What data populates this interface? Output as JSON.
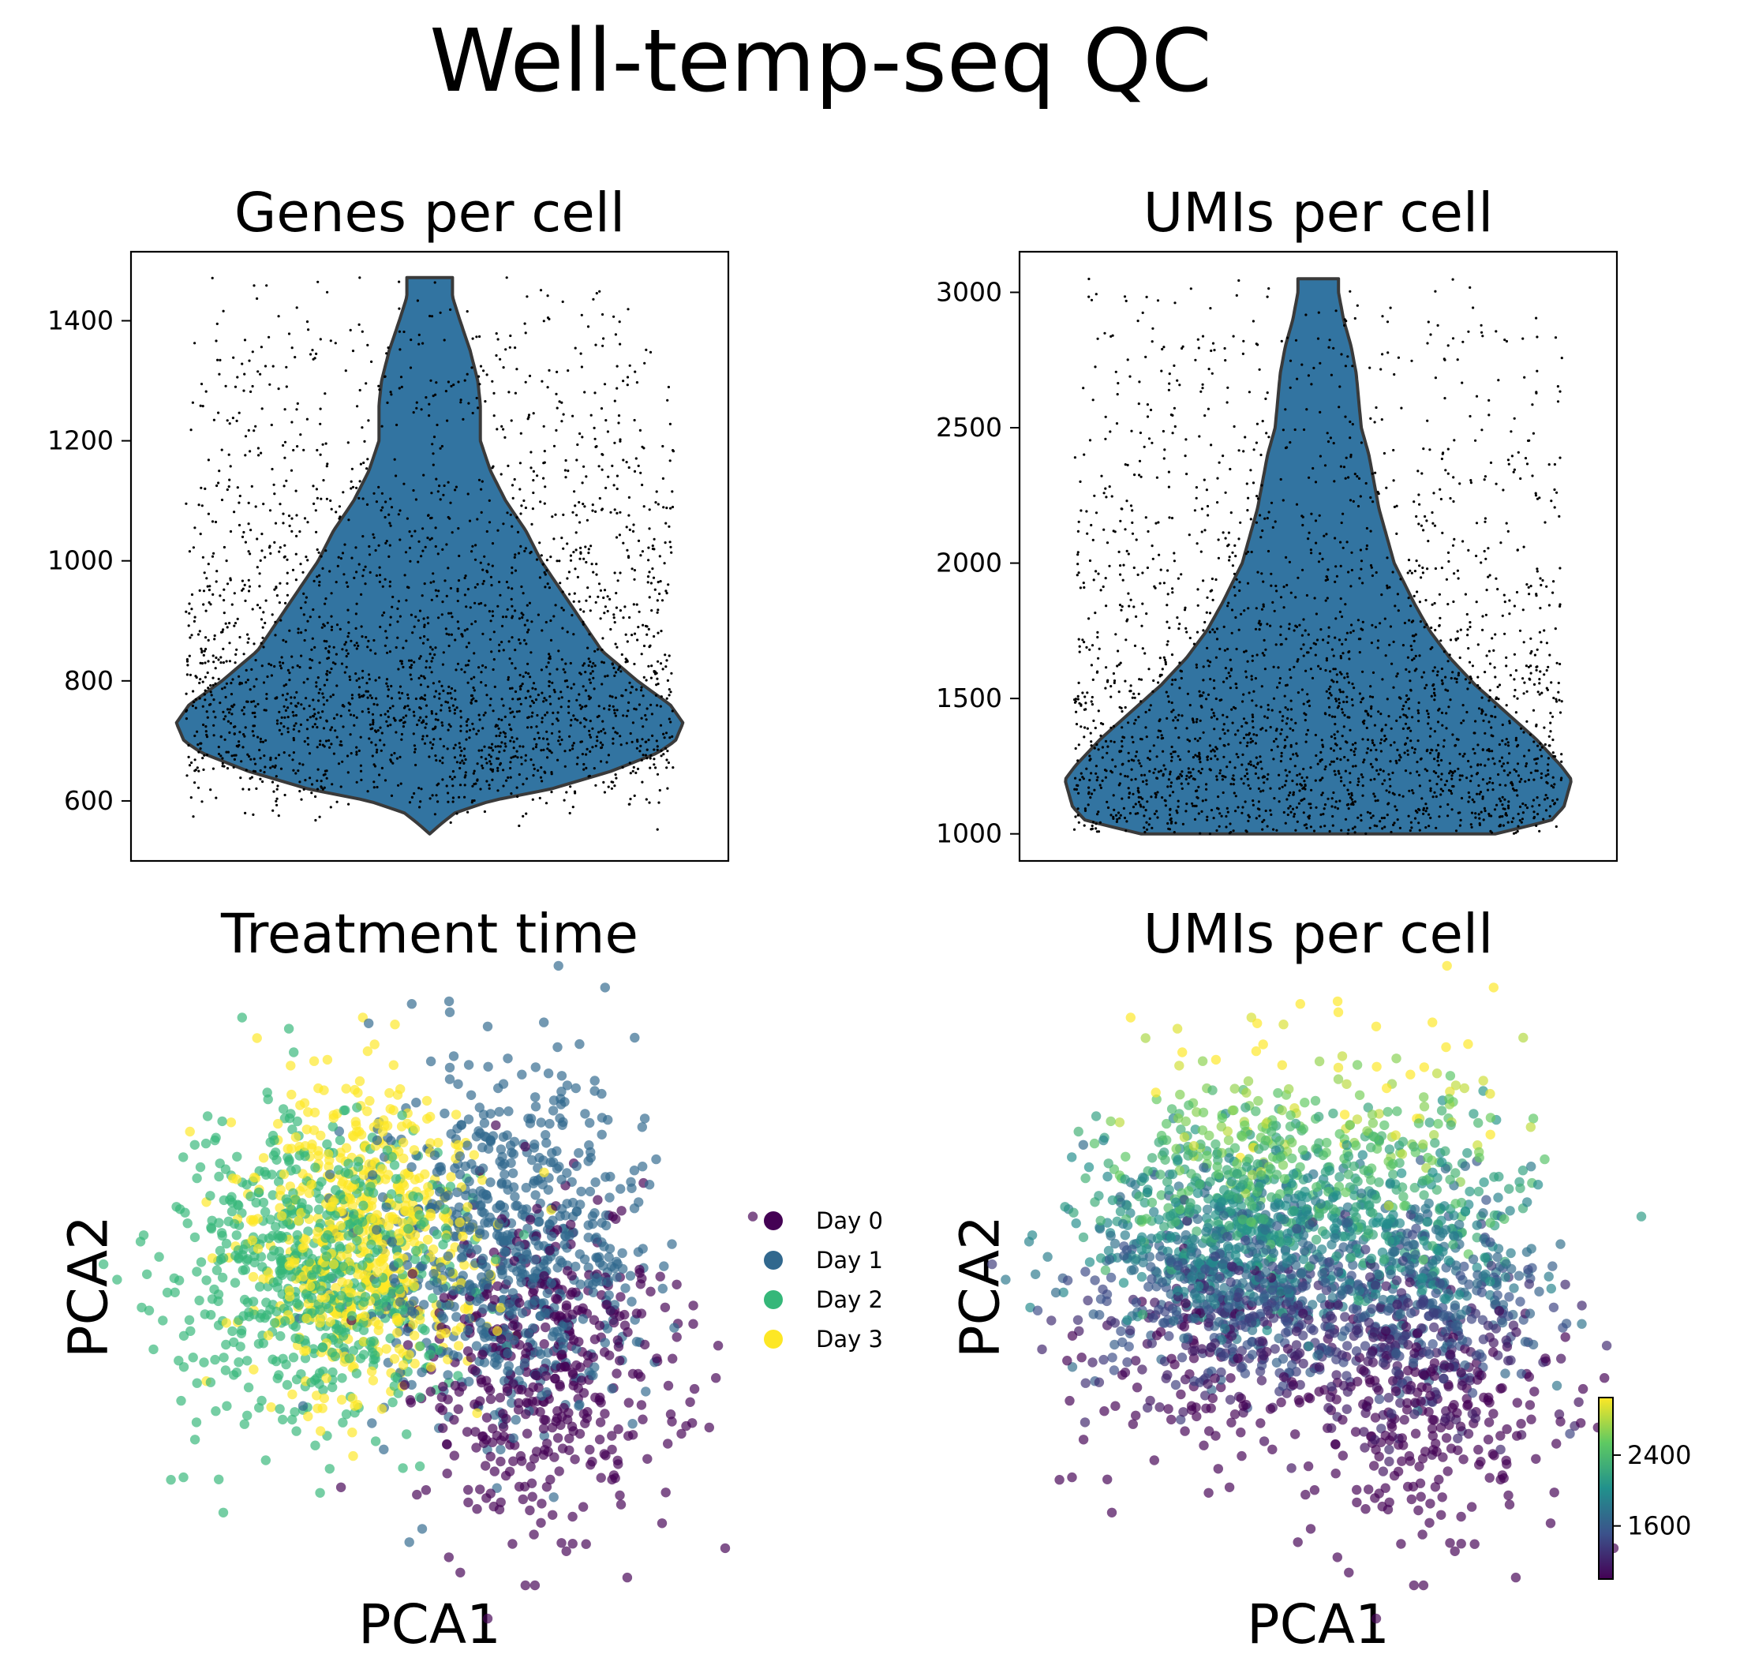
{
  "suptitle": "Well-temp-seq QC",
  "chart_data": [
    {
      "type": "violin",
      "title": "Genes per cell",
      "ylim": [
        500,
        1515
      ],
      "yticks": [
        600,
        800,
        1000,
        1200,
        1400
      ],
      "range": [
        545,
        1472
      ],
      "n_points": 2400,
      "density_profile": [
        [
          545,
          0.0
        ],
        [
          560,
          0.04
        ],
        [
          580,
          0.1
        ],
        [
          600,
          0.24
        ],
        [
          620,
          0.48
        ],
        [
          650,
          0.72
        ],
        [
          680,
          0.9
        ],
        [
          700,
          0.97
        ],
        [
          730,
          1.0
        ],
        [
          760,
          0.95
        ],
        [
          800,
          0.82
        ],
        [
          850,
          0.68
        ],
        [
          900,
          0.6
        ],
        [
          950,
          0.52
        ],
        [
          1000,
          0.44
        ],
        [
          1050,
          0.38
        ],
        [
          1100,
          0.3
        ],
        [
          1150,
          0.24
        ],
        [
          1200,
          0.2
        ],
        [
          1260,
          0.2
        ],
        [
          1300,
          0.19
        ],
        [
          1350,
          0.16
        ],
        [
          1400,
          0.12
        ],
        [
          1440,
          0.09
        ],
        [
          1472,
          0.09
        ]
      ]
    },
    {
      "type": "violin",
      "title": "UMIs per cell",
      "ylim": [
        900,
        3150
      ],
      "yticks": [
        1000,
        1500,
        2000,
        2500,
        3000
      ],
      "range": [
        1000,
        3050
      ],
      "n_points": 2400,
      "density_profile": [
        [
          1000,
          0.7
        ],
        [
          1050,
          0.92
        ],
        [
          1100,
          0.97
        ],
        [
          1200,
          1.0
        ],
        [
          1250,
          0.96
        ],
        [
          1350,
          0.86
        ],
        [
          1450,
          0.74
        ],
        [
          1550,
          0.62
        ],
        [
          1650,
          0.52
        ],
        [
          1750,
          0.44
        ],
        [
          1850,
          0.38
        ],
        [
          2000,
          0.3
        ],
        [
          2200,
          0.24
        ],
        [
          2400,
          0.2
        ],
        [
          2500,
          0.17
        ],
        [
          2700,
          0.15
        ],
        [
          2800,
          0.13
        ],
        [
          2900,
          0.1
        ],
        [
          3000,
          0.08
        ],
        [
          3050,
          0.08
        ]
      ]
    },
    {
      "type": "scatter",
      "title": "Treatment time",
      "xlabel": "PCA1",
      "ylabel": "PCA2",
      "legend_position": "right",
      "series": [
        {
          "name": "Day 0",
          "color": "#440154",
          "center": [
            1.7,
            -1.3
          ],
          "spread": [
            0.9,
            1.1
          ],
          "n": 450
        },
        {
          "name": "Day 1",
          "color": "#31688e",
          "center": [
            1.1,
            0.4
          ],
          "spread": [
            1.0,
            1.3
          ],
          "n": 700
        },
        {
          "name": "Day 2",
          "color": "#35b779",
          "center": [
            -1.7,
            0.1
          ],
          "spread": [
            0.95,
            1.1
          ],
          "n": 650
        },
        {
          "name": "Day 3",
          "color": "#fde725",
          "center": [
            -0.9,
            0.5
          ],
          "spread": [
            0.8,
            1.1
          ],
          "n": 600
        }
      ]
    },
    {
      "type": "scatter",
      "title": "UMIs per cell",
      "xlabel": "PCA1",
      "ylabel": "PCA2",
      "colormap": "viridis",
      "colorbar": {
        "ticks": [
          1600,
          2400
        ],
        "range": [
          1000,
          3050
        ]
      }
    }
  ],
  "colors": {
    "violin_fill": "#3274a1",
    "violin_edge": "#3a3a3a",
    "points": "#000000"
  }
}
